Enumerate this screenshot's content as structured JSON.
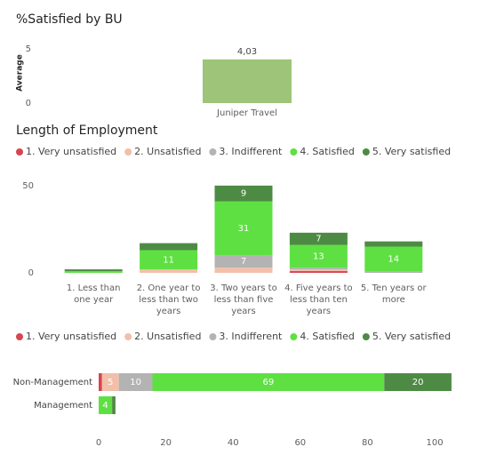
{
  "chart_data": [
    {
      "type": "bar",
      "title": "%Satisfied by BU",
      "y_label": "Average",
      "categories": [
        "Juniper Travel"
      ],
      "values": [
        4.03
      ],
      "value_labels": [
        "4,03"
      ],
      "color": "#9dc478",
      "ylim": [
        0,
        5
      ],
      "yticks": [
        0,
        5
      ]
    },
    {
      "type": "stacked_bar",
      "title": "Length of Employment",
      "categories": [
        "1. Less than one year",
        "2. One year to less than two years",
        "3. Two years to less than five years",
        "4. Five years to less than ten years",
        "5. Ten years or more"
      ],
      "series": [
        {
          "name": "1. Very unsatisfied",
          "color": "#d64550",
          "values": [
            0,
            0,
            0,
            1,
            0
          ]
        },
        {
          "name": "2. Unsatisfied",
          "color": "#f2bfa9",
          "values": [
            0,
            2,
            3,
            1,
            0
          ]
        },
        {
          "name": "3. Indifferent",
          "color": "#b3b3b3",
          "values": [
            0,
            0,
            7,
            1,
            1
          ]
        },
        {
          "name": "4. Satisfied",
          "color": "#5ee043",
          "values": [
            1,
            11,
            31,
            13,
            14
          ]
        },
        {
          "name": "5. Very satisfied",
          "color": "#4d8b44",
          "values": [
            1,
            4,
            9,
            7,
            3
          ]
        }
      ],
      "ylim": [
        0,
        54
      ],
      "yticks": [
        0,
        50
      ],
      "legend": "top-left"
    },
    {
      "type": "stacked_barh",
      "categories": [
        "Non-Management",
        "Management"
      ],
      "series": [
        {
          "name": "1. Very unsatisfied",
          "color": "#d64550",
          "values": [
            1,
            0
          ]
        },
        {
          "name": "2. Unsatisfied",
          "color": "#f2bfa9",
          "values": [
            5,
            0
          ]
        },
        {
          "name": "3. Indifferent",
          "color": "#b3b3b3",
          "values": [
            10,
            0
          ]
        },
        {
          "name": "4. Satisfied",
          "color": "#5ee043",
          "values": [
            69,
            4
          ]
        },
        {
          "name": "5. Very satisfied",
          "color": "#4d8b44",
          "values": [
            20,
            1
          ]
        }
      ],
      "xlim": [
        0,
        106
      ],
      "xticks": [
        0,
        20,
        40,
        60,
        80,
        100
      ],
      "legend": "top-left"
    }
  ]
}
